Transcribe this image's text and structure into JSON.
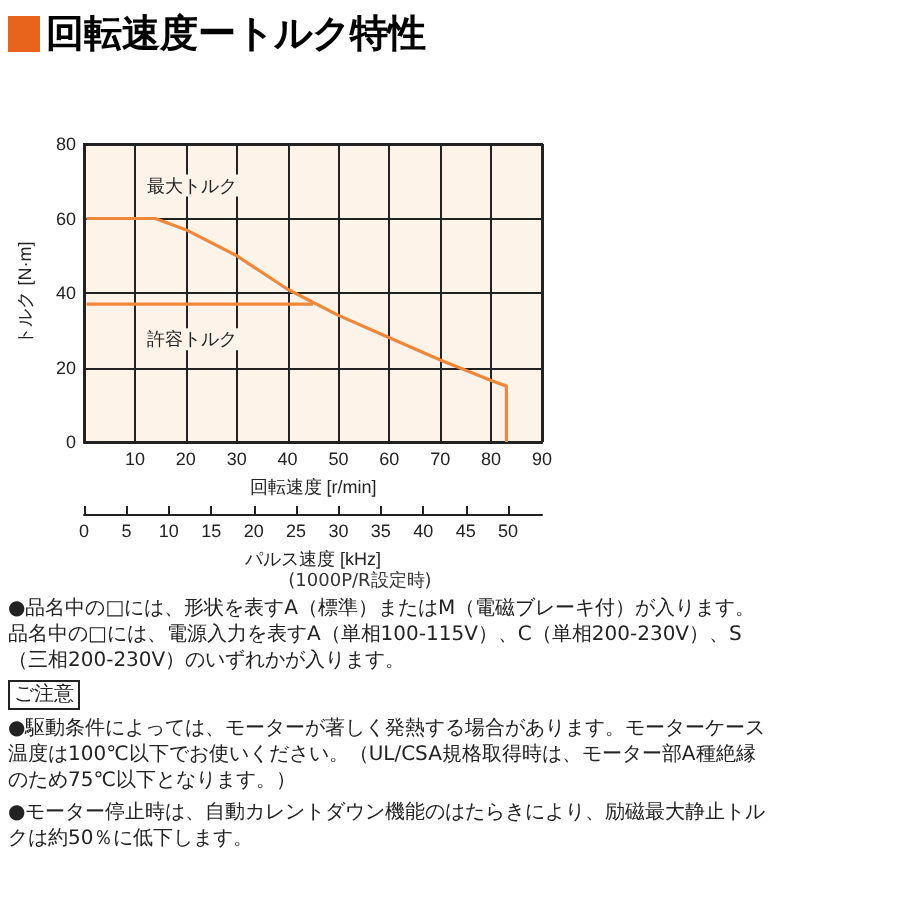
{
  "chart_data": {
    "type": "line",
    "title": "回転速度ートルク特性",
    "xlabel": "回転速度 [r/min]",
    "ylabel": "トルク [N·m]",
    "x2label": "パルス速度 [kHz]",
    "xlim": [
      0,
      90
    ],
    "xticks": [
      {
        "value": 0,
        "label": null
      },
      10,
      20,
      30,
      40,
      50,
      60,
      70,
      80,
      90
    ],
    "ylim": [
      0,
      80
    ],
    "yticks": [
      0,
      20,
      40,
      60,
      80
    ],
    "x2lim": [
      0,
      54
    ],
    "x2ticks": [
      0,
      5,
      10,
      15,
      20,
      25,
      30,
      35,
      40,
      45,
      50
    ],
    "grid": true,
    "marker": "none",
    "line_style": "solid",
    "series": [
      {
        "name": "最大トルク",
        "color": "#f0873a",
        "x": [
          0.5,
          14,
          20,
          30,
          40,
          50,
          60,
          70,
          80,
          83,
          83
        ],
        "values": [
          60,
          60,
          57,
          50,
          41,
          34,
          28,
          22,
          16.5,
          15,
          0
        ]
      },
      {
        "name": "許容トルク",
        "color": "#f0873a",
        "x": [
          0.5,
          45
        ],
        "values": [
          37,
          37
        ]
      }
    ],
    "annotations": [
      "(1000P/R設定時)",
      "●品名中の□には、形状を表すA（標準）またはM（電磁ブレーキ付）が入ります。品名中の□には、電源入力を表すA（単相100-115V）、C（単相200-230V）、S（三相200-230V）のいずれかが入ります。",
      "ご注意",
      "●駆動条件によっては、モーターが著しく発熱する場合があります。モーターケース温度は100℃以下でお使いください。（UL/CSA規格取得時は、モーター部A種絶縁のため75℃以下となります。）",
      "●モーター停止時は、自動カレントダウン機能のはたらきにより、励磁最大静止トルクは約50％に低下します。"
    ]
  }
}
